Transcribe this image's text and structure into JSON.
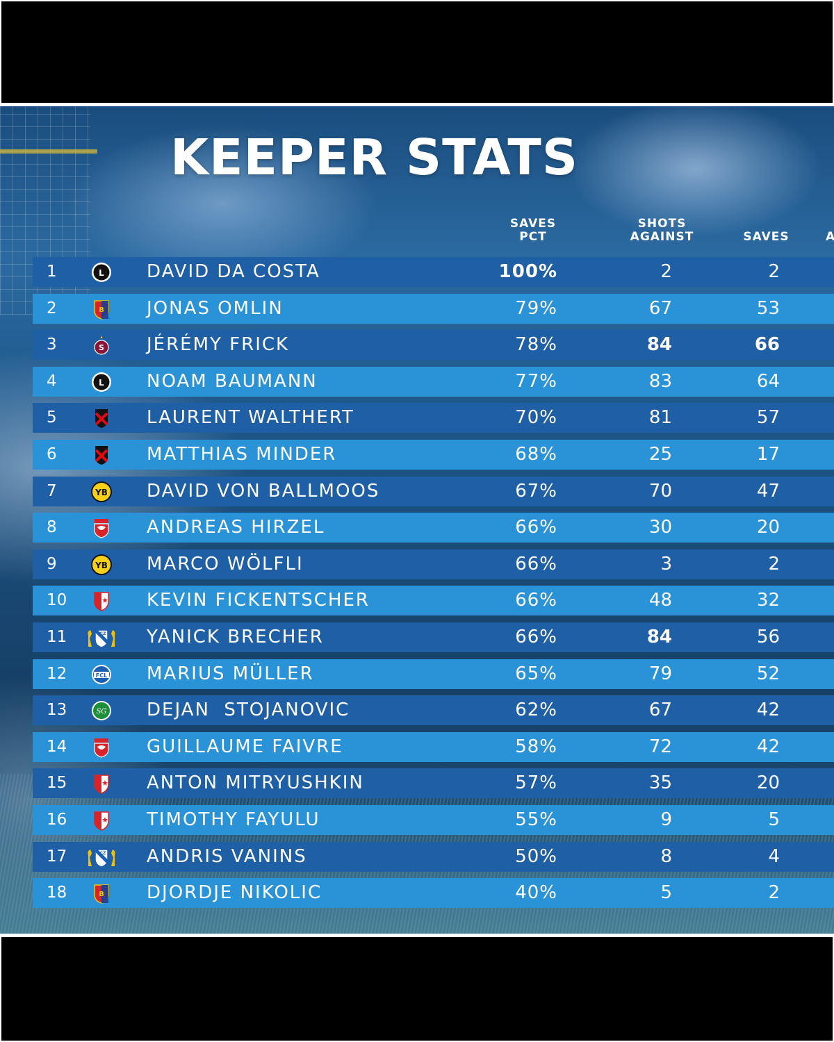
{
  "title": "KEEPER STATS",
  "columns": {
    "saves_pct": [
      "SAVES",
      "PCT"
    ],
    "shots_against": [
      "SHOTS",
      "AGAINST"
    ],
    "saves": "SAVES",
    "cut_off": "A"
  },
  "colors": {
    "row_dark": "#1f5fa6",
    "row_light": "#2a92d6",
    "text": "#ffffff",
    "letterbox": "#000000"
  },
  "rows": [
    {
      "rank": "1",
      "club_icon": "fc-lugano-crest-icon",
      "name": "DAVID DA COSTA",
      "saves_pct": "100%",
      "shots_against": "2",
      "saves": "2",
      "bold": [
        "saves_pct"
      ]
    },
    {
      "rank": "2",
      "club_icon": "fc-basel-crest-icon",
      "name": "JONAS OMLIN",
      "saves_pct": "79%",
      "shots_against": "67",
      "saves": "53",
      "bold": []
    },
    {
      "rank": "3",
      "club_icon": "servette-crest-icon",
      "name": "JÉRÉMY FRICK",
      "saves_pct": "78%",
      "shots_against": "84",
      "saves": "66",
      "bold": [
        "shots_against",
        "saves"
      ]
    },
    {
      "rank": "4",
      "club_icon": "fc-lugano-crest-icon",
      "name": "NOAM BAUMANN",
      "saves_pct": "77%",
      "shots_against": "83",
      "saves": "64",
      "bold": []
    },
    {
      "rank": "5",
      "club_icon": "xamax-crest-icon",
      "name": "LAURENT WALTHERT",
      "saves_pct": "70%",
      "shots_against": "81",
      "saves": "57",
      "bold": []
    },
    {
      "rank": "6",
      "club_icon": "xamax-crest-icon",
      "name": "MATTHIAS MINDER",
      "saves_pct": "68%",
      "shots_against": "25",
      "saves": "17",
      "bold": []
    },
    {
      "rank": "7",
      "club_icon": "young-boys-crest-icon",
      "name": "DAVID VON BALLMOOS",
      "saves_pct": "67%",
      "shots_against": "70",
      "saves": "47",
      "bold": []
    },
    {
      "rank": "8",
      "club_icon": "fc-thun-crest-icon",
      "name": "ANDREAS HIRZEL",
      "saves_pct": "66%",
      "shots_against": "30",
      "saves": "20",
      "bold": []
    },
    {
      "rank": "9",
      "club_icon": "young-boys-crest-icon",
      "name": "MARCO WÖLFLI",
      "saves_pct": "66%",
      "shots_against": "3",
      "saves": "2",
      "bold": []
    },
    {
      "rank": "10",
      "club_icon": "fc-sion-crest-icon",
      "name": "KEVIN FICKENTSCHER",
      "saves_pct": "66%",
      "shots_against": "48",
      "saves": "32",
      "bold": []
    },
    {
      "rank": "11",
      "club_icon": "fc-zurich-crest-icon",
      "name": "YANICK BRECHER",
      "saves_pct": "66%",
      "shots_against": "84",
      "saves": "56",
      "bold": [
        "shots_against"
      ]
    },
    {
      "rank": "12",
      "club_icon": "fc-luzern-crest-icon",
      "name": "MARIUS MÜLLER",
      "saves_pct": "65%",
      "shots_against": "79",
      "saves": "52",
      "bold": []
    },
    {
      "rank": "13",
      "club_icon": "fc-st-gallen-crest-icon",
      "name": "DEJAN  STOJANOVIC",
      "saves_pct": "62%",
      "shots_against": "67",
      "saves": "42",
      "bold": []
    },
    {
      "rank": "14",
      "club_icon": "fc-thun-crest-icon",
      "name": "GUILLAUME FAIVRE",
      "saves_pct": "58%",
      "shots_against": "72",
      "saves": "42",
      "bold": []
    },
    {
      "rank": "15",
      "club_icon": "fc-sion-crest-icon",
      "name": "ANTON MITRYUSHKIN",
      "saves_pct": "57%",
      "shots_against": "35",
      "saves": "20",
      "bold": []
    },
    {
      "rank": "16",
      "club_icon": "fc-sion-crest-icon",
      "name": "TIMOTHY FAYULU",
      "saves_pct": "55%",
      "shots_against": "9",
      "saves": "5",
      "bold": []
    },
    {
      "rank": "17",
      "club_icon": "fc-zurich-crest-icon",
      "name": "ANDRIS VANINS",
      "saves_pct": "50%",
      "shots_against": "8",
      "saves": "4",
      "bold": []
    },
    {
      "rank": "18",
      "club_icon": "fc-basel-crest-icon",
      "name": "DJORDJE NIKOLIC",
      "saves_pct": "40%",
      "shots_against": "5",
      "saves": "2",
      "bold": []
    }
  ]
}
